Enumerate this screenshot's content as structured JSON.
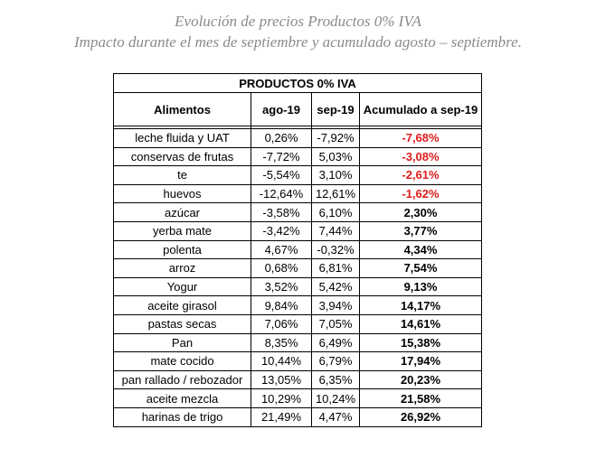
{
  "title": "Evolución de precios Productos 0% IVA",
  "subtitle": "Impacto durante el mes de septiembre y acumulado agosto – septiembre.",
  "table": {
    "caption": "PRODUCTOS 0% IVA",
    "headers": [
      "Alimentos",
      "ago-19",
      "sep-19",
      "Acumulado a sep-19"
    ],
    "rows": [
      [
        "leche fluida y UAT",
        "0,26%",
        "-7,92%",
        "-7,68%"
      ],
      [
        "conservas de frutas",
        "-7,72%",
        "5,03%",
        "-3,08%"
      ],
      [
        "te",
        "-5,54%",
        "3,10%",
        "-2,61%"
      ],
      [
        "huevos",
        "-12,64%",
        "12,61%",
        "-1,62%"
      ],
      [
        "azúcar",
        "-3,58%",
        "6,10%",
        "2,30%"
      ],
      [
        "yerba mate",
        "-3,42%",
        "7,44%",
        "3,77%"
      ],
      [
        "polenta",
        "4,67%",
        "-0,32%",
        "4,34%"
      ],
      [
        "arroz",
        "0,68%",
        "6,81%",
        "7,54%"
      ],
      [
        "Yogur",
        "3,52%",
        "5,42%",
        "9,13%"
      ],
      [
        "aceite girasol",
        "9,84%",
        "3,94%",
        "14,17%"
      ],
      [
        "pastas secas",
        "7,06%",
        "7,05%",
        "14,61%"
      ],
      [
        "Pan",
        "8,35%",
        "6,49%",
        "15,38%"
      ],
      [
        "mate cocido",
        "10,44%",
        "6,79%",
        "17,94%"
      ],
      [
        "pan rallado / rebozador",
        "13,05%",
        "6,35%",
        "20,23%"
      ],
      [
        "aceite mezcla",
        "10,29%",
        "10,24%",
        "21,58%"
      ],
      [
        "harinas de trigo",
        "21,49%",
        "4,47%",
        "26,92%"
      ]
    ]
  },
  "colors": {
    "negative": "#e01b1b",
    "title": "#8a8a8a"
  }
}
